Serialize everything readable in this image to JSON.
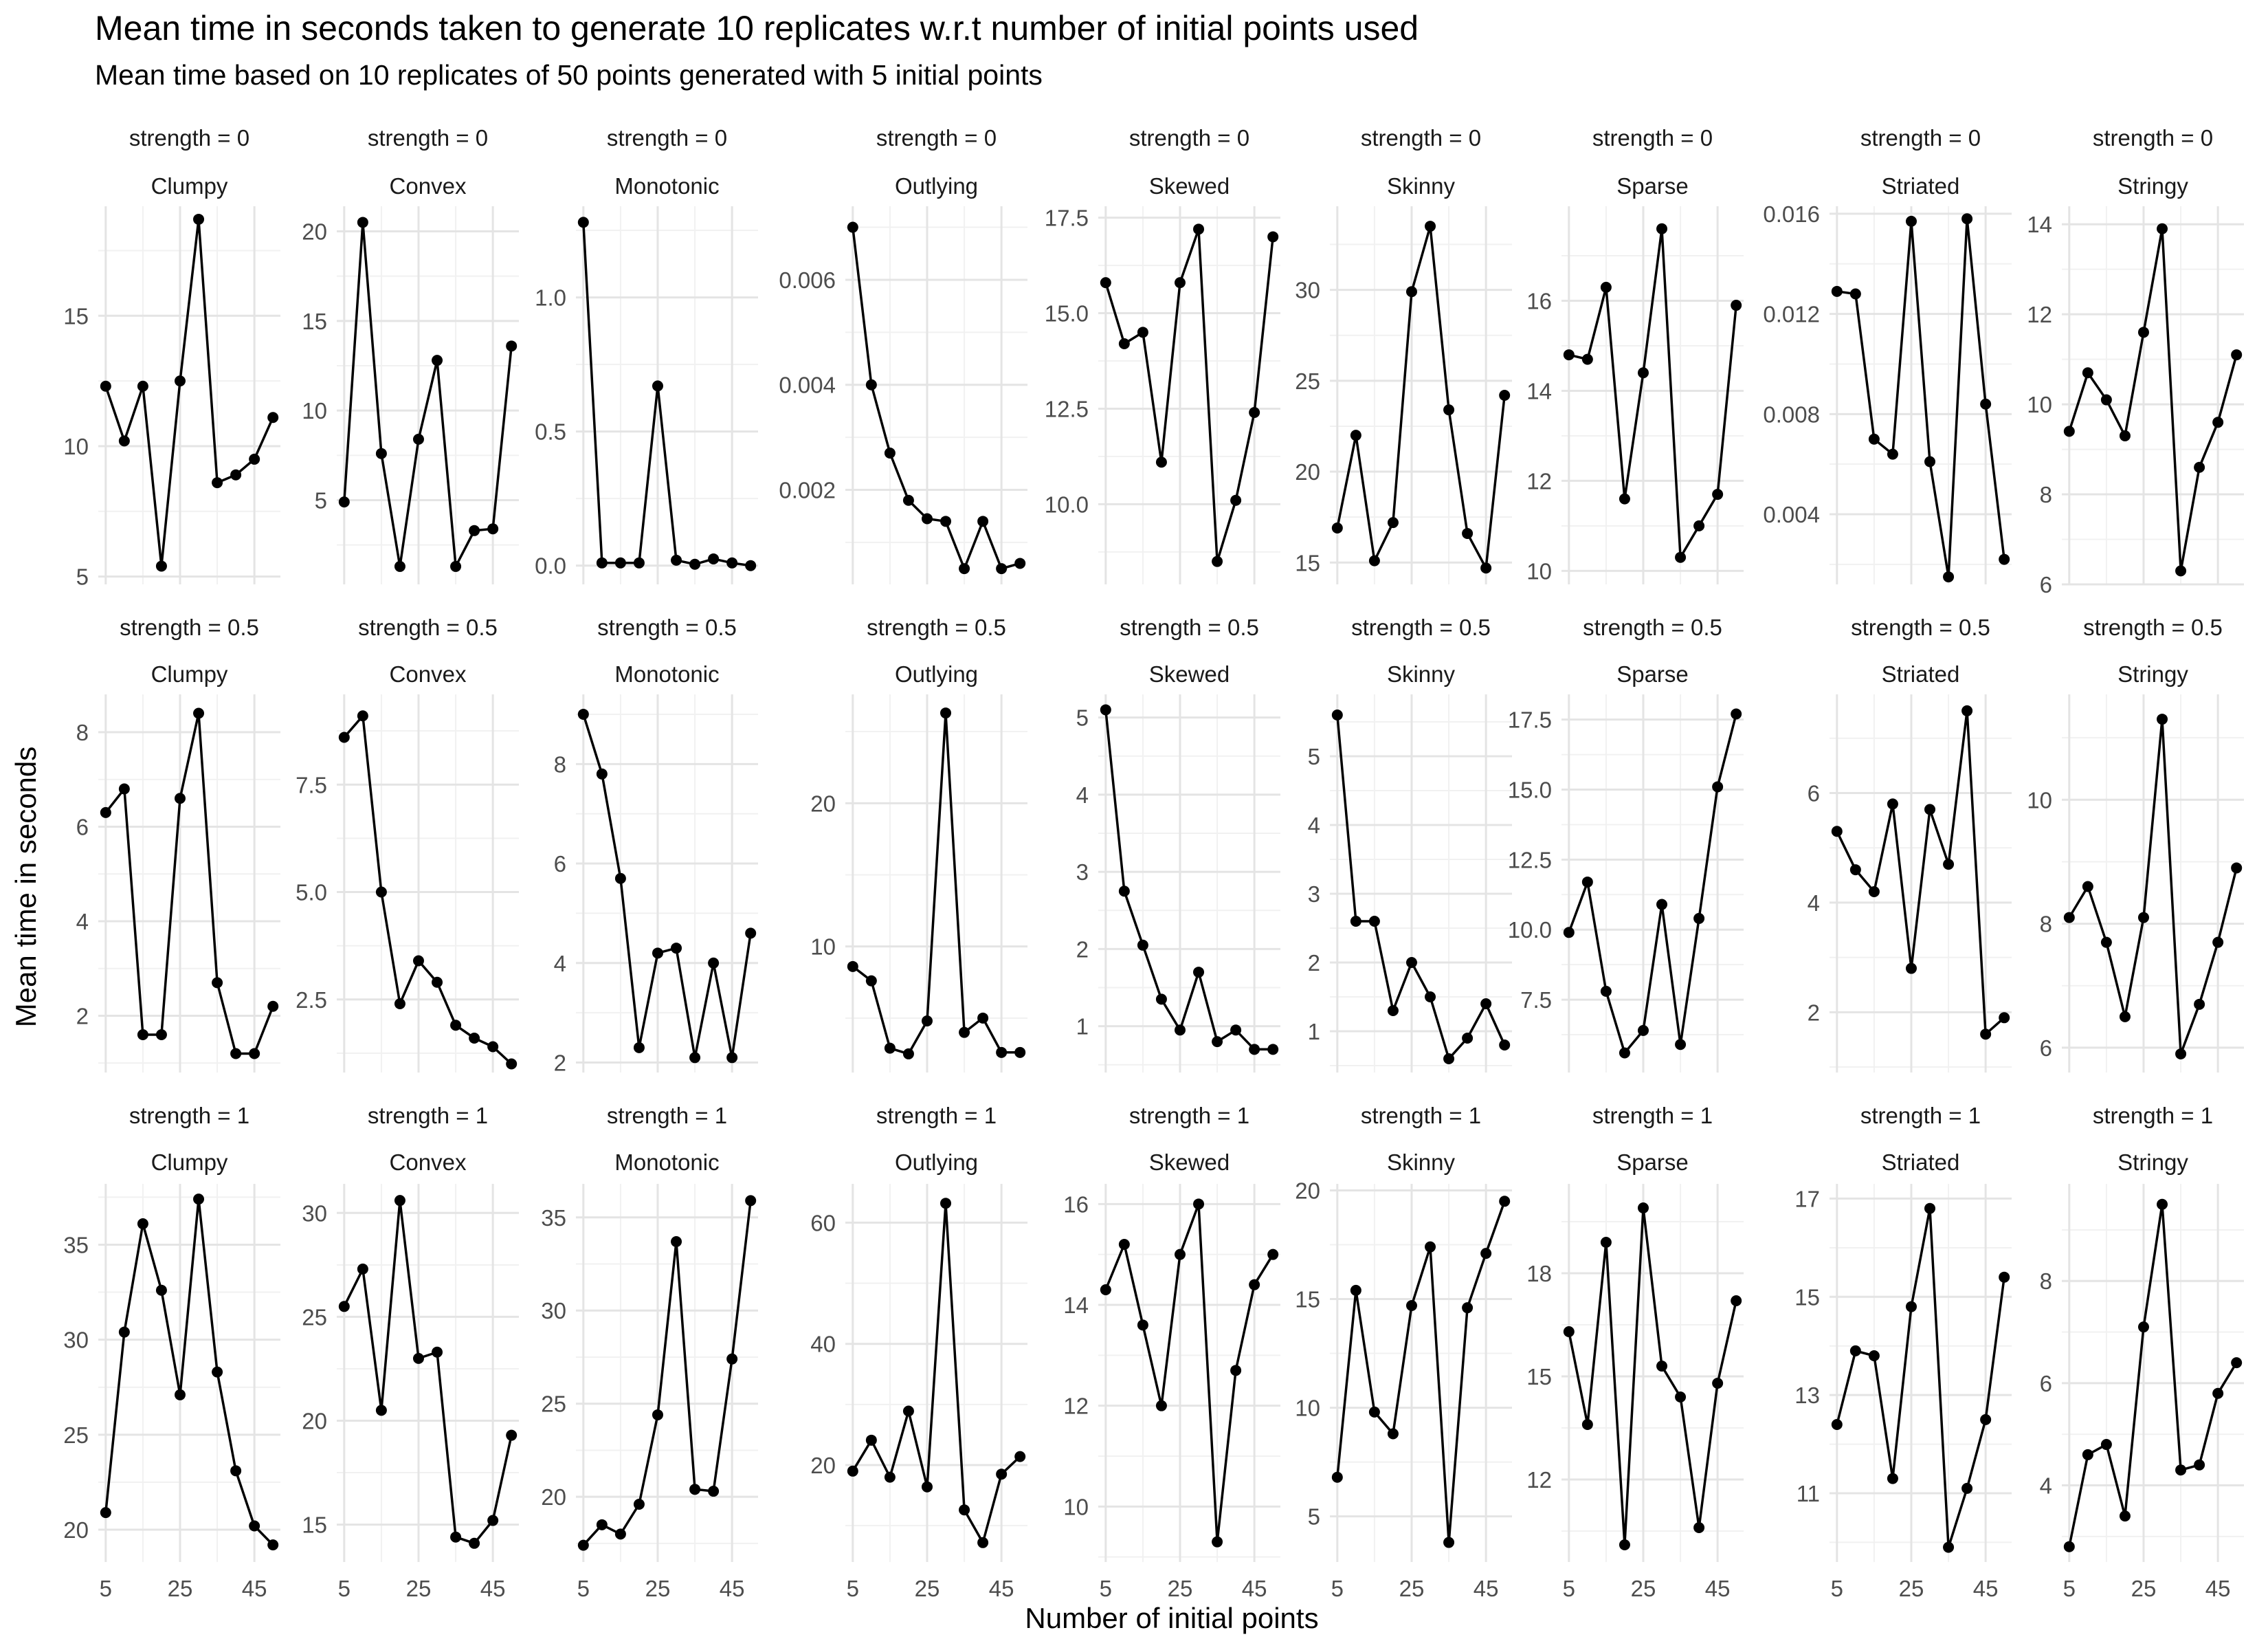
{
  "title": "Mean time in seconds taken to generate 10 replicates w.r.t number of initial points used",
  "subtitle": "Mean time  based on 10 replicates of 50 points generated with 5 initial points",
  "xlabel": "Number of initial points",
  "ylabel": "Mean time in seconds",
  "colors": {
    "line": "#000000",
    "grid_major": "#e4e4e4",
    "grid_minor": "#f1f1f1",
    "text": "#4d4d4d",
    "strip_text": "#1a1a1a"
  },
  "chart_data": {
    "type": "line",
    "facet_rows": [
      "strength = 0",
      "strength = 0.5",
      "strength = 1"
    ],
    "facet_cols": [
      "Clumpy",
      "Convex",
      "Monotonic",
      "Outlying",
      "Skewed",
      "Skinny",
      "Sparse",
      "Striated",
      "Stringy"
    ],
    "x": [
      5,
      10,
      15,
      20,
      25,
      30,
      35,
      40,
      45,
      50
    ],
    "xticks": [
      "5",
      "25",
      "45"
    ],
    "xtick_values": [
      5,
      25,
      45
    ],
    "xlim": [
      3,
      52
    ],
    "x_axis_shown_row": 2,
    "grid": true,
    "panels": [
      {
        "row": 0,
        "col": 0,
        "ylim": [
          4.7,
          19.2
        ],
        "yticks": [
          "5",
          "10",
          "15"
        ],
        "ytick_values": [
          5,
          10,
          15
        ],
        "values": [
          12.3,
          10.2,
          12.3,
          5.4,
          12.5,
          18.7,
          8.6,
          8.9,
          9.5,
          11.1
        ]
      },
      {
        "row": 0,
        "col": 1,
        "ylim": [
          0.3,
          21.4
        ],
        "yticks": [
          "5",
          "10",
          "15",
          "20"
        ],
        "ytick_values": [
          5,
          10,
          15,
          20
        ],
        "values": [
          4.9,
          20.5,
          7.6,
          1.3,
          8.4,
          12.8,
          1.3,
          3.3,
          3.4,
          13.6
        ]
      },
      {
        "row": 0,
        "col": 2,
        "ylim": [
          -0.07,
          1.34
        ],
        "yticks": [
          "0.0",
          "0.5",
          "1.0"
        ],
        "ytick_values": [
          0,
          0.5,
          1.0
        ],
        "values": [
          1.28,
          0.01,
          0.01,
          0.01,
          0.67,
          0.02,
          0.005,
          0.025,
          0.01,
          0.0
        ]
      },
      {
        "row": 0,
        "col": 3,
        "ylim": [
          0.0002,
          0.0074
        ],
        "yticks": [
          "0.002",
          "0.004",
          "0.006"
        ],
        "ytick_values": [
          0.002,
          0.004,
          0.006
        ],
        "values": [
          0.007,
          0.004,
          0.0027,
          0.0018,
          0.00145,
          0.0014,
          0.0005,
          0.0014,
          0.0005,
          0.0006
        ]
      },
      {
        "row": 0,
        "col": 4,
        "ylim": [
          7.9,
          17.8
        ],
        "yticks": [
          "10.0",
          "12.5",
          "15.0",
          "17.5"
        ],
        "ytick_values": [
          10,
          12.5,
          15,
          17.5
        ],
        "values": [
          15.8,
          14.2,
          14.5,
          11.1,
          15.8,
          17.2,
          8.5,
          10.1,
          12.4,
          17.0
        ]
      },
      {
        "row": 0,
        "col": 5,
        "ylim": [
          13.8,
          34.6
        ],
        "yticks": [
          "15",
          "20",
          "25",
          "30"
        ],
        "ytick_values": [
          15,
          20,
          25,
          30
        ],
        "values": [
          16.9,
          22.0,
          15.1,
          17.2,
          29.9,
          33.5,
          23.4,
          16.6,
          14.7,
          24.2
        ]
      },
      {
        "row": 0,
        "col": 6,
        "ylim": [
          9.7,
          18.1
        ],
        "yticks": [
          "10",
          "12",
          "14",
          "16"
        ],
        "ytick_values": [
          10,
          12,
          14,
          16
        ],
        "values": [
          14.8,
          14.7,
          16.3,
          11.6,
          14.4,
          17.6,
          10.3,
          11.0,
          11.7,
          15.9
        ]
      },
      {
        "row": 0,
        "col": 7,
        "ylim": [
          0.0012,
          0.0163
        ],
        "yticks": [
          "0.004",
          "0.008",
          "0.012",
          "0.016"
        ],
        "ytick_values": [
          0.004,
          0.008,
          0.012,
          0.016
        ],
        "values": [
          0.0129,
          0.0128,
          0.007,
          0.0064,
          0.0157,
          0.0061,
          0.0015,
          0.0158,
          0.0084,
          0.0022
        ]
      },
      {
        "row": 0,
        "col": 8,
        "ylim": [
          6.0,
          14.4
        ],
        "yticks": [
          "6",
          "8",
          "10",
          "12",
          "14"
        ],
        "ytick_values": [
          6,
          8,
          10,
          12,
          14
        ],
        "values": [
          9.4,
          10.7,
          10.1,
          9.3,
          11.6,
          13.9,
          6.3,
          8.6,
          9.6,
          11.1
        ]
      },
      {
        "row": 1,
        "col": 0,
        "ylim": [
          0.8,
          8.8
        ],
        "yticks": [
          "2",
          "4",
          "6",
          "8"
        ],
        "ytick_values": [
          2,
          4,
          6,
          8
        ],
        "values": [
          6.3,
          6.8,
          1.6,
          1.6,
          6.6,
          8.4,
          2.7,
          1.2,
          1.2,
          2.2
        ]
      },
      {
        "row": 1,
        "col": 1,
        "ylim": [
          0.8,
          9.6
        ],
        "yticks": [
          "2.5",
          "5.0",
          "7.5"
        ],
        "ytick_values": [
          2.5,
          5.0,
          7.5
        ],
        "values": [
          8.6,
          9.1,
          5.0,
          2.4,
          3.4,
          2.9,
          1.9,
          1.6,
          1.4,
          1.0
        ]
      },
      {
        "row": 1,
        "col": 2,
        "ylim": [
          1.8,
          9.4
        ],
        "yticks": [
          "2",
          "4",
          "6",
          "8"
        ],
        "ytick_values": [
          2,
          4,
          6,
          8
        ],
        "values": [
          9.0,
          7.8,
          5.7,
          2.3,
          4.2,
          4.3,
          2.1,
          4.0,
          2.1,
          4.6
        ]
      },
      {
        "row": 1,
        "col": 3,
        "ylim": [
          1.2,
          27.6
        ],
        "yticks": [
          "10",
          "20"
        ],
        "ytick_values": [
          10,
          20
        ],
        "values": [
          8.6,
          7.6,
          2.9,
          2.5,
          4.8,
          26.3,
          4.0,
          5.0,
          2.6,
          2.6
        ]
      },
      {
        "row": 1,
        "col": 4,
        "ylim": [
          0.4,
          5.3
        ],
        "yticks": [
          "1",
          "2",
          "3",
          "4",
          "5"
        ],
        "ytick_values": [
          1,
          2,
          3,
          4,
          5
        ],
        "values": [
          5.1,
          2.75,
          2.05,
          1.35,
          0.95,
          1.7,
          0.8,
          0.95,
          0.7,
          0.7
        ]
      },
      {
        "row": 1,
        "col": 5,
        "ylim": [
          0.4,
          5.9
        ],
        "yticks": [
          "1",
          "2",
          "3",
          "4",
          "5"
        ],
        "ytick_values": [
          1,
          2,
          3,
          4,
          5
        ],
        "values": [
          5.6,
          2.6,
          2.6,
          1.3,
          2.0,
          1.5,
          0.6,
          0.9,
          1.4,
          0.8
        ]
      },
      {
        "row": 1,
        "col": 6,
        "ylim": [
          4.9,
          18.4
        ],
        "yticks": [
          "7.5",
          "10.0",
          "12.5",
          "15.0",
          "17.5"
        ],
        "ytick_values": [
          7.5,
          10,
          12.5,
          15,
          17.5
        ],
        "values": [
          9.9,
          11.7,
          7.8,
          5.6,
          6.4,
          10.9,
          5.9,
          10.4,
          15.1,
          17.7
        ]
      },
      {
        "row": 1,
        "col": 7,
        "ylim": [
          0.9,
          7.8
        ],
        "yticks": [
          "2",
          "4",
          "6"
        ],
        "ytick_values": [
          2,
          4,
          6
        ],
        "values": [
          5.3,
          4.6,
          4.2,
          5.8,
          2.8,
          5.7,
          4.7,
          7.5,
          1.6,
          1.9
        ]
      },
      {
        "row": 1,
        "col": 8,
        "ylim": [
          5.6,
          11.7
        ],
        "yticks": [
          "6",
          "8",
          "10"
        ],
        "ytick_values": [
          6,
          8,
          10
        ],
        "values": [
          8.1,
          8.6,
          7.7,
          6.5,
          8.1,
          11.3,
          5.9,
          6.7,
          7.7,
          8.9
        ]
      },
      {
        "row": 2,
        "col": 0,
        "ylim": [
          18.3,
          38.2
        ],
        "yticks": [
          "20",
          "25",
          "30",
          "35"
        ],
        "ytick_values": [
          20,
          25,
          30,
          35
        ],
        "values": [
          20.9,
          30.4,
          36.1,
          32.6,
          27.1,
          37.4,
          28.3,
          23.1,
          20.2,
          19.2
        ]
      },
      {
        "row": 2,
        "col": 1,
        "ylim": [
          13.2,
          31.4
        ],
        "yticks": [
          "15",
          "20",
          "25",
          "30"
        ],
        "ytick_values": [
          15,
          20,
          25,
          30
        ],
        "values": [
          25.5,
          27.3,
          20.5,
          30.6,
          23.0,
          23.3,
          14.4,
          14.1,
          15.2,
          19.3
        ]
      },
      {
        "row": 2,
        "col": 2,
        "ylim": [
          16.5,
          36.8
        ],
        "yticks": [
          "20",
          "25",
          "30",
          "35"
        ],
        "ytick_values": [
          20,
          25,
          30,
          35
        ],
        "values": [
          17.4,
          18.5,
          18.0,
          19.6,
          24.4,
          33.7,
          20.4,
          20.3,
          27.4,
          35.9
        ]
      },
      {
        "row": 2,
        "col": 3,
        "ylim": [
          4.0,
          66.4
        ],
        "yticks": [
          "20",
          "40",
          "60"
        ],
        "ytick_values": [
          20,
          40,
          60
        ],
        "values": [
          19.0,
          24.1,
          18.0,
          28.9,
          16.4,
          63.2,
          12.6,
          7.2,
          18.5,
          21.4
        ]
      },
      {
        "row": 2,
        "col": 4,
        "ylim": [
          8.9,
          16.4
        ],
        "yticks": [
          "10",
          "12",
          "14",
          "16"
        ],
        "ytick_values": [
          10,
          12,
          14,
          16
        ],
        "values": [
          14.3,
          15.2,
          13.6,
          12.0,
          15.0,
          16.0,
          9.3,
          12.7,
          14.4,
          15.0
        ]
      },
      {
        "row": 2,
        "col": 5,
        "ylim": [
          2.9,
          20.3
        ],
        "yticks": [
          "5",
          "10",
          "15",
          "20"
        ],
        "ytick_values": [
          5,
          10,
          15,
          20
        ],
        "values": [
          6.8,
          15.4,
          9.8,
          8.8,
          14.7,
          17.4,
          3.8,
          14.6,
          17.1,
          19.5
        ]
      },
      {
        "row": 2,
        "col": 6,
        "ylim": [
          9.6,
          20.6
        ],
        "yticks": [
          "12",
          "15",
          "18"
        ],
        "ytick_values": [
          12,
          15,
          18
        ],
        "values": [
          16.3,
          13.6,
          18.9,
          10.1,
          19.9,
          15.3,
          14.4,
          10.6,
          14.8,
          17.2
        ]
      },
      {
        "row": 2,
        "col": 7,
        "ylim": [
          9.6,
          17.3
        ],
        "yticks": [
          "11",
          "13",
          "15",
          "17"
        ],
        "ytick_values": [
          11,
          13,
          15,
          17
        ],
        "values": [
          12.4,
          13.9,
          13.8,
          11.3,
          14.8,
          16.8,
          9.9,
          11.1,
          12.5,
          15.4
        ]
      },
      {
        "row": 2,
        "col": 8,
        "ylim": [
          2.5,
          9.9
        ],
        "yticks": [
          "4",
          "6",
          "8"
        ],
        "ytick_values": [
          4,
          6,
          8
        ],
        "values": [
          2.8,
          4.6,
          4.8,
          3.4,
          7.1,
          9.5,
          4.3,
          4.4,
          5.8,
          6.4
        ]
      }
    ]
  }
}
